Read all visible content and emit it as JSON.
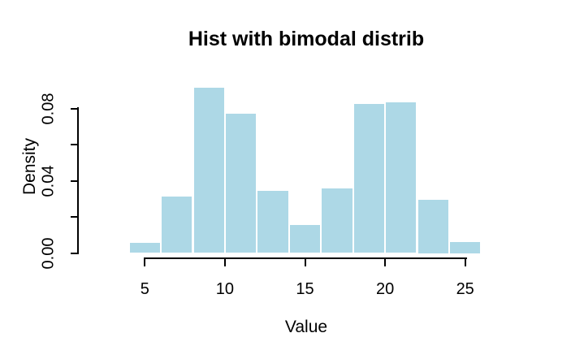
{
  "chart_data": {
    "type": "bar",
    "subtype": "histogram",
    "title": "Hist with bimodal distrib",
    "xlabel": "Value",
    "ylabel": "Density",
    "xlim": [
      4,
      26
    ],
    "ylim": [
      0,
      0.092
    ],
    "bin_width": 2,
    "bin_breaks": [
      4,
      6,
      8,
      10,
      12,
      14,
      16,
      18,
      20,
      22,
      24,
      26
    ],
    "densities": [
      0.006,
      0.0315,
      0.092,
      0.0775,
      0.035,
      0.016,
      0.036,
      0.083,
      0.084,
      0.03,
      0.0065
    ],
    "x_ticks": [
      5,
      10,
      15,
      20,
      25
    ],
    "y_ticks": [
      {
        "value": 0.0,
        "label": "0.00"
      },
      {
        "value": 0.02,
        "label": ""
      },
      {
        "value": 0.04,
        "label": "0.04"
      },
      {
        "value": 0.06,
        "label": ""
      },
      {
        "value": 0.08,
        "label": "0.08"
      }
    ],
    "legend": null,
    "grid": false,
    "colors": {
      "bar_fill": "#ADD8E6",
      "bar_border": "#FFFFFF",
      "axis": "#000000",
      "text": "#000000",
      "background": "#FFFFFF"
    }
  }
}
